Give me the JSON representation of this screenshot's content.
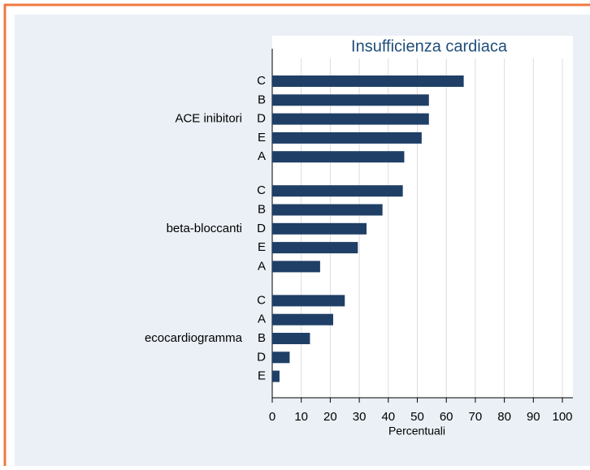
{
  "chart_data": {
    "type": "bar",
    "title": "Insufficienza cardiaca",
    "xlabel": "Percentuali",
    "color": "#1f3f66",
    "groups": [
      {
        "name": "ACE inibitori",
        "categories": [
          "C",
          "B",
          "D",
          "E",
          "A"
        ],
        "values": [
          66,
          54,
          54,
          51.5,
          45.5
        ]
      },
      {
        "name": "beta-bloccanti",
        "categories": [
          "C",
          "B",
          "D",
          "E",
          "A"
        ],
        "values": [
          45,
          38,
          32.5,
          29.5,
          16.5
        ]
      },
      {
        "name": "ecocardiogramma",
        "categories": [
          "C",
          "A",
          "B",
          "D",
          "E"
        ],
        "values": [
          25,
          21,
          13,
          6,
          2.5
        ]
      }
    ],
    "xlim": [
      0,
      100
    ],
    "xticks": [
      0,
      10,
      20,
      30,
      40,
      50,
      60,
      70,
      80,
      90,
      100
    ],
    "grid": true
  }
}
